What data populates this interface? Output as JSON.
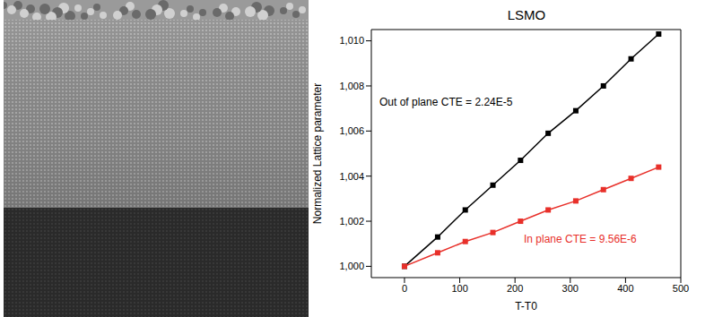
{
  "chart_data": {
    "type": "line",
    "title": "LSMO",
    "x_label": "T-T0",
    "y_label": "Normalized Lattice parameter",
    "x": [
      0,
      60,
      110,
      160,
      210,
      260,
      310,
      360,
      410,
      460
    ],
    "series": [
      {
        "name": "Out of plane",
        "color": "#000000",
        "marker": "square",
        "line_style": "solid",
        "values": [
          1.0,
          1.0013,
          1.0025,
          1.0036,
          1.0047,
          1.0059,
          1.0069,
          1.008,
          1.0092,
          1.0103
        ]
      },
      {
        "name": "In plane",
        "color": "#e8302a",
        "marker": "square",
        "line_style": "solid",
        "values": [
          1.0,
          1.0006,
          1.0011,
          1.0015,
          1.002,
          1.0025,
          1.0029,
          1.0034,
          1.0039,
          1.0044
        ]
      }
    ],
    "annotations": [
      {
        "text": "Out of plane CTE = 2.24E-5",
        "color": "#000000"
      },
      {
        "text": "In plane CTE = 9.56E-6",
        "color": "#e8302a"
      }
    ],
    "xlim": [
      -60,
      500
    ],
    "xticks": [
      0,
      100,
      200,
      300,
      400,
      500
    ],
    "ylim": [
      0.9995,
      1.0105
    ],
    "yticks": [
      {
        "value": 1.0,
        "label": "1,000"
      },
      {
        "value": 1.002,
        "label": "1,002"
      },
      {
        "value": 1.004,
        "label": "1,004"
      },
      {
        "value": 1.006,
        "label": "1,006"
      },
      {
        "value": 1.008,
        "label": "1,008"
      },
      {
        "value": 1.01,
        "label": "1,010"
      }
    ],
    "grid": false
  }
}
